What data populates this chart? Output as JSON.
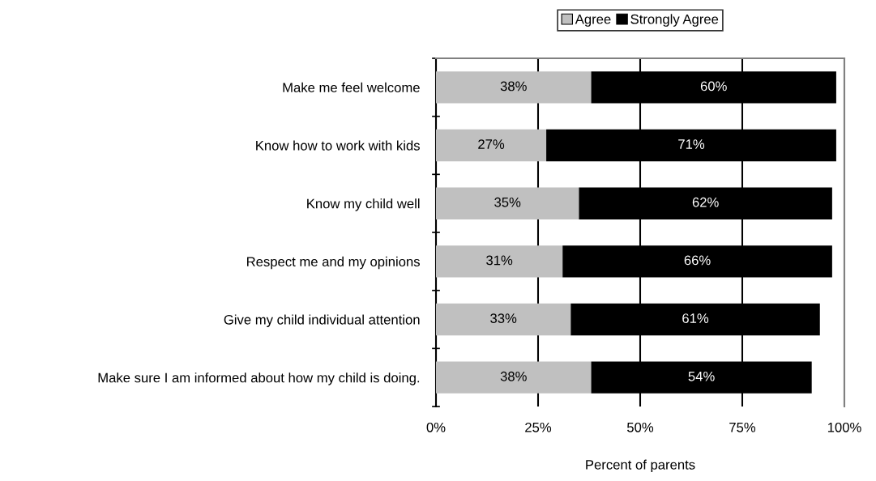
{
  "chart_data": {
    "type": "bar",
    "orientation": "horizontal",
    "stacked": true,
    "xlabel": "Percent of parents",
    "categories": [
      "Make me feel welcome",
      "Know how to work with kids",
      "Know my child well",
      "Respect me and my opinions",
      "Give my child individual attention",
      "Make sure I am informed about how my child is doing."
    ],
    "series": [
      {
        "name": "Agree",
        "color": "#c0c0c0",
        "values": [
          38,
          27,
          35,
          31,
          33,
          38
        ],
        "value_labels": [
          "38%",
          "27%",
          "35%",
          "31%",
          "33%",
          "38%"
        ]
      },
      {
        "name": "Strongly Agree",
        "color": "#000000",
        "values": [
          60,
          71,
          62,
          66,
          61,
          54
        ],
        "value_labels": [
          "60%",
          "71%",
          "62%",
          "66%",
          "61%",
          "54%"
        ]
      }
    ],
    "xlim": [
      0,
      100
    ],
    "xticks": [
      {
        "value": 0,
        "label": "0%"
      },
      {
        "value": 25,
        "label": "25%"
      },
      {
        "value": 50,
        "label": "50%"
      },
      {
        "value": 75,
        "label": "75%"
      },
      {
        "value": 100,
        "label": "100%"
      }
    ],
    "grid": "x",
    "legend": "top"
  }
}
